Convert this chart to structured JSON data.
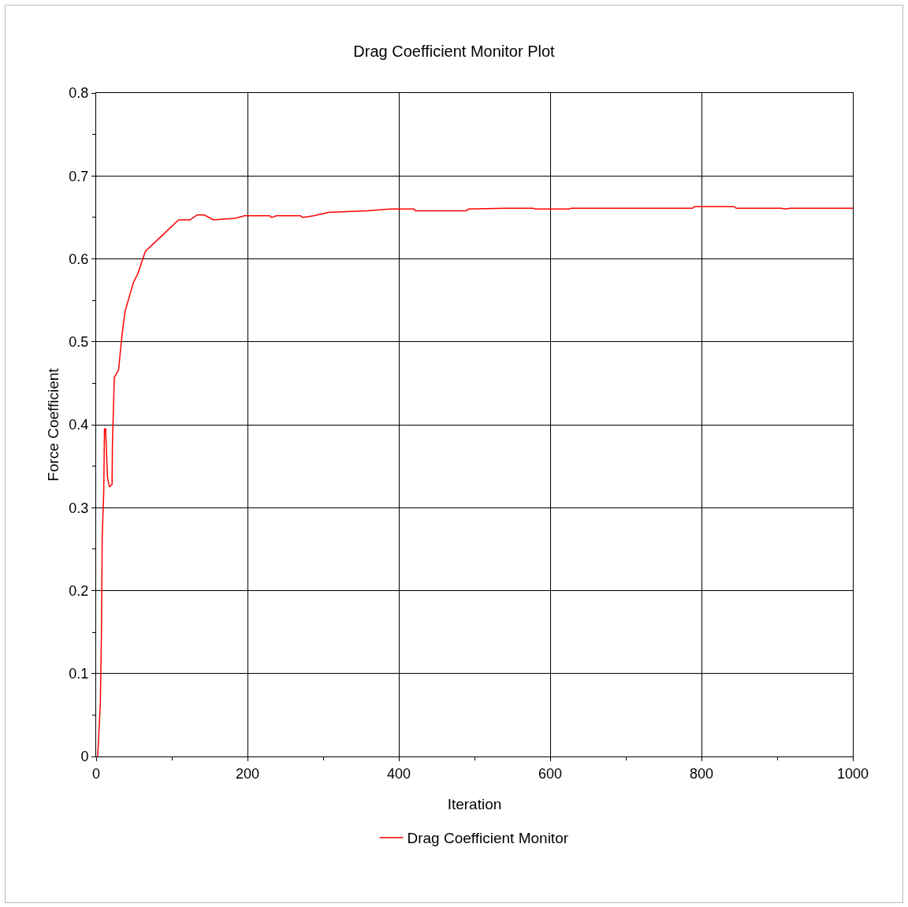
{
  "chart_data": {
    "type": "line",
    "title": "Drag Coefficient Monitor Plot",
    "xlabel": "Iteration",
    "ylabel": "Force Coefficient",
    "xlim": [
      0,
      1000
    ],
    "xticks": [
      0,
      200,
      400,
      600,
      800,
      1000
    ],
    "ylim": [
      0,
      0.8
    ],
    "yticks": [
      0,
      0.1,
      0.2,
      0.3,
      0.4,
      0.5,
      0.6,
      0.7,
      0.8
    ],
    "grid": true,
    "legend": "bottom",
    "marker": "none",
    "line_style": "solid",
    "series": [
      {
        "name": "Drag Coefficient Monitor",
        "color": "#ff0000",
        "x": [
          2,
          5.5,
          7,
          8,
          10,
          11,
          12.5,
          15,
          17.6,
          21,
          21.5,
          24,
          29.6,
          34.5,
          38.3,
          49,
          55,
          65,
          80,
          109,
          124,
          133.5,
          143,
          155,
          184,
          196,
          199,
          229,
          232,
          238,
          270,
          273,
          288,
          307,
          358,
          388,
          420,
          422,
          489,
          492,
          541,
          578,
          580,
          625,
          628,
          788,
          791,
          843,
          846,
          906,
          909,
          918,
          1000
        ],
        "values": [
          0,
          0.064,
          0.148,
          0.265,
          0.318,
          0.395,
          0.395,
          0.336,
          0.325,
          0.328,
          0.377,
          0.457,
          0.466,
          0.511,
          0.537,
          0.571,
          0.582,
          0.609,
          0.622,
          0.647,
          0.647,
          0.653,
          0.653,
          0.647,
          0.649,
          0.652,
          0.652,
          0.652,
          0.65,
          0.652,
          0.652,
          0.65,
          0.652,
          0.656,
          0.658,
          0.66,
          0.66,
          0.658,
          0.658,
          0.66,
          0.661,
          0.661,
          0.66,
          0.66,
          0.661,
          0.661,
          0.663,
          0.663,
          0.661,
          0.661,
          0.66,
          0.661,
          0.661
        ]
      }
    ]
  }
}
